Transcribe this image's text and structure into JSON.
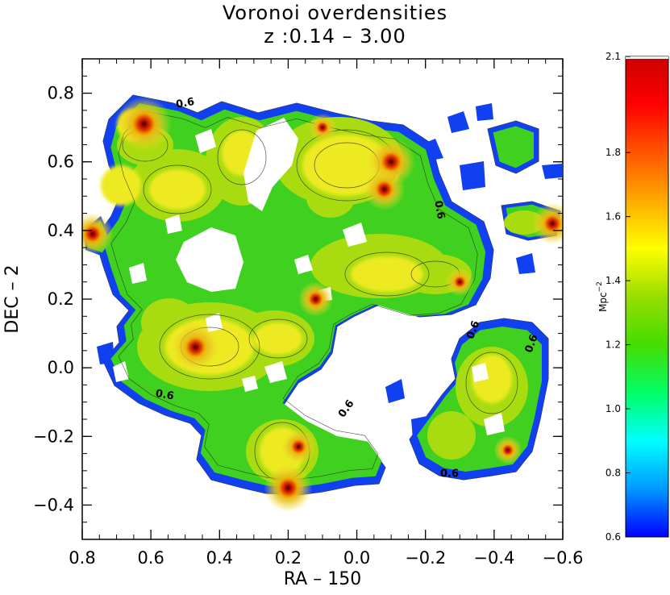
{
  "chart_data": {
    "type": "heatmap",
    "title": "Voronoi overdensities",
    "subtitle": "z :0.14  –  3.00",
    "xlabel": "RA – 150",
    "ylabel": "DEC – 2",
    "xlim": [
      0.8,
      -0.6
    ],
    "ylim": [
      -0.5,
      0.9
    ],
    "x_ticks": [
      0.8,
      0.6,
      0.4,
      0.2,
      0.0,
      -0.2,
      -0.4,
      -0.6
    ],
    "x_tick_labels": [
      "0.8",
      "0.6",
      "0.4",
      "0.2",
      "0.0",
      "−0.2",
      "−0.4",
      "−0.6"
    ],
    "y_ticks": [
      0.8,
      0.6,
      0.4,
      0.2,
      0.0,
      -0.2,
      -0.4
    ],
    "y_tick_labels": [
      "0.8",
      "0.6",
      "0.4",
      "0.2",
      "0.0",
      "−0.2",
      "−0.4"
    ],
    "x_reversed": true,
    "grid": false,
    "colorbar": {
      "label": "Mpc",
      "label_exponent": "−2",
      "range": [
        0.6,
        2.1
      ],
      "ticks": [
        0.6,
        0.8,
        1.0,
        1.2,
        1.4,
        1.6,
        1.8,
        2.1
      ],
      "tick_labels": [
        "0.6",
        "0.8",
        "1.0",
        "1.2",
        "1.4",
        "1.6",
        "1.8",
        "2.1"
      ],
      "colors": [
        "#0000ff",
        "#0099ff",
        "#00ffff",
        "#00ff66",
        "#44dd00",
        "#99dd00",
        "#ffff00",
        "#ffaa00",
        "#ff5500",
        "#ff0000",
        "#cc0000"
      ]
    },
    "contour_labels": [
      {
        "text": "0.6",
        "x": 0.5,
        "y": 0.77,
        "rotation": -10
      },
      {
        "text": "0.6",
        "x": -0.24,
        "y": 0.46,
        "rotation": 80
      },
      {
        "text": "0.6",
        "x": -0.34,
        "y": 0.11,
        "rotation": -70
      },
      {
        "text": "0.6",
        "x": -0.51,
        "y": 0.07,
        "rotation": -70
      },
      {
        "text": "0.6",
        "x": 0.56,
        "y": -0.08,
        "rotation": 10
      },
      {
        "text": "0.6",
        "x": 0.03,
        "y": -0.12,
        "rotation": -55
      },
      {
        "text": "0.6",
        "x": -0.27,
        "y": -0.31,
        "rotation": 0
      }
    ],
    "density_peaks": [
      {
        "x": 0.62,
        "y": 0.71,
        "value": 2.1
      },
      {
        "x": 0.77,
        "y": 0.39,
        "value": 1.9
      },
      {
        "x": 0.47,
        "y": 0.06,
        "value": 2.0
      },
      {
        "x": 0.2,
        "y": -0.35,
        "value": 2.0
      },
      {
        "x": -0.1,
        "y": 0.6,
        "value": 2.0
      },
      {
        "x": -0.08,
        "y": 0.52,
        "value": 1.9
      },
      {
        "x": -0.57,
        "y": 0.42,
        "value": 1.9
      },
      {
        "x": 0.12,
        "y": 0.2,
        "value": 1.8
      },
      {
        "x": 0.1,
        "y": 0.7,
        "value": 1.7
      },
      {
        "x": -0.3,
        "y": 0.25,
        "value": 1.7
      },
      {
        "x": 0.17,
        "y": -0.23,
        "value": 1.8
      },
      {
        "x": -0.44,
        "y": -0.24,
        "value": 1.7
      }
    ]
  }
}
